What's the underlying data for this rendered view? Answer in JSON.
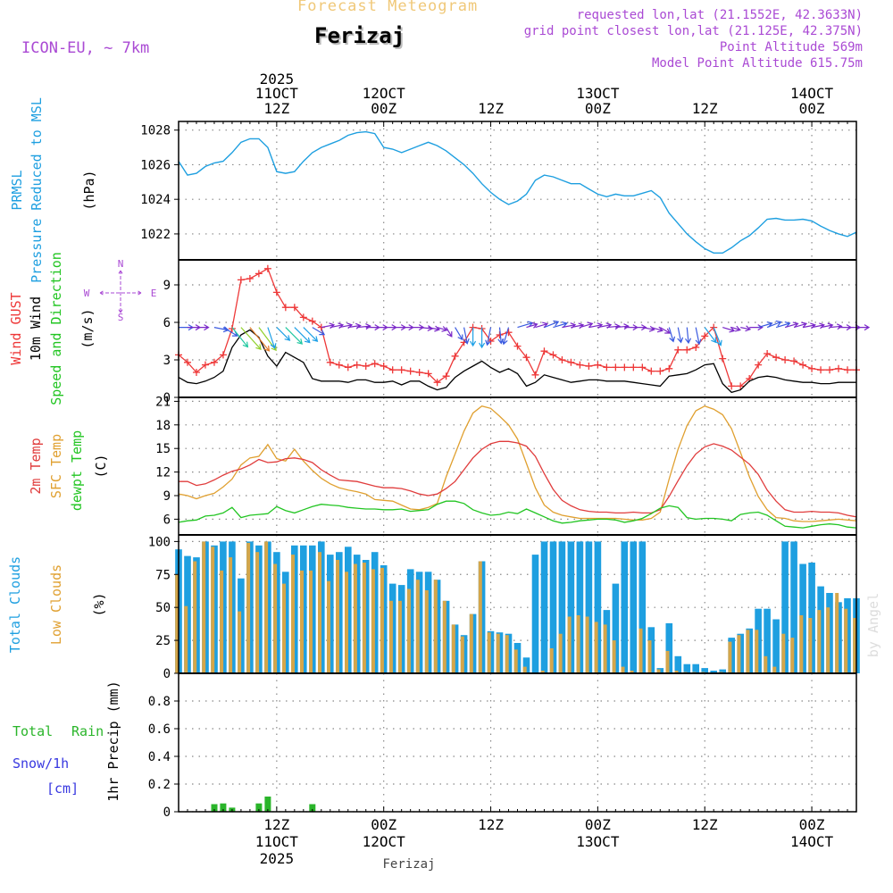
{
  "header": {
    "app_title": "Forecast Meteogram",
    "location": "Ferizaj",
    "model": "ICON-EU, ~ 7km",
    "requested": "requested lon,lat (21.1552E, 42.3633N)",
    "grid_point": "grid point closest lon,lat (21.125E, 42.375N)",
    "point_altitude": "Point Altitude 569m",
    "model_altitude": "Model Point Altitude 615.75m",
    "footer_location": "Ferizaj",
    "credit": "by Angel"
  },
  "colors": {
    "pressure": "#1e9fe0",
    "gust": "#ee3838",
    "wind": "#000000",
    "t2m": "#e03c3c",
    "sfc": "#e0a030",
    "dewpt": "#22c522",
    "total_cloud": "#1e9fe0",
    "low_cloud": "#d4a64a",
    "rain": "#2ab52a",
    "snow": "#3838e0",
    "purple": "#aa4ad4",
    "grid": "#888888"
  },
  "time_axis": {
    "top_labels": [
      {
        "t": 12,
        "l1": "2025",
        "l2": "11OCT",
        "l3": "12Z"
      },
      {
        "t": 24,
        "l1": "",
        "l2": "12OCT",
        "l3": "00Z"
      },
      {
        "t": 36,
        "l1": "",
        "l2": "",
        "l3": "12Z"
      },
      {
        "t": 48,
        "l1": "",
        "l2": "13OCT",
        "l3": "00Z"
      },
      {
        "t": 60,
        "l1": "",
        "l2": "",
        "l3": "12Z"
      },
      {
        "t": 72,
        "l1": "",
        "l2": "14OCT",
        "l3": "00Z"
      }
    ],
    "bottom_labels": [
      {
        "t": 12,
        "l1": "12Z",
        "l2": "11OCT",
        "l3": "2025"
      },
      {
        "t": 24,
        "l1": "00Z",
        "l2": "12OCT",
        "l3": ""
      },
      {
        "t": 36,
        "l1": "12Z",
        "l2": "",
        "l3": ""
      },
      {
        "t": 48,
        "l1": "00Z",
        "l2": "13OCT",
        "l3": ""
      },
      {
        "t": 60,
        "l1": "12Z",
        "l2": "",
        "l3": ""
      },
      {
        "t": 72,
        "l1": "00Z",
        "l2": "14OCT",
        "l3": ""
      }
    ]
  },
  "labels": {
    "prmsl": "PRMSL",
    "pressure_msl": "Pressure Reduced to MSL",
    "hpa": "(hPa)",
    "wind_gust": "Wind GUST",
    "wind10": "10m Wind",
    "speed_dir": "Speed and Direction",
    "ms": "(m/s)",
    "compass_w": "W",
    "compass_e": "E",
    "compass_n": "N",
    "compass_s": "S",
    "t2m": "2m Temp",
    "sfc": "SFC Temp",
    "dewpt": "dewpt Temp",
    "c": "(C)",
    "total_clouds": "Total Clouds",
    "low_clouds": "Low Clouds",
    "pct": "(%)",
    "total": "Total",
    "rain": "Rain",
    "snow": "Snow/1h",
    "cm": "[cm]",
    "precip": "1hr Precip (mm)"
  },
  "chart_data": {
    "type": "meteogram",
    "time_unit": "hours since 11OCT 00Z",
    "x_range": [
      1,
      77
    ],
    "pressure": {
      "unit": "hPa",
      "ylim": [
        1020.5,
        1028.5
      ],
      "ticks": [
        1022,
        1024,
        1026,
        1028
      ],
      "values": [
        1026.2,
        1025.4,
        1025.5,
        1025.9,
        1026.1,
        1026.2,
        1026.7,
        1027.3,
        1027.5,
        1027.5,
        1027.0,
        1025.6,
        1025.5,
        1025.6,
        1026.2,
        1026.7,
        1027.0,
        1027.2,
        1027.4,
        1027.7,
        1027.85,
        1027.9,
        1027.8,
        1027.0,
        1026.9,
        1026.7,
        1026.9,
        1027.1,
        1027.3,
        1027.1,
        1026.8,
        1026.4,
        1026.0,
        1025.5,
        1024.9,
        1024.4,
        1024.0,
        1023.7,
        1023.9,
        1024.3,
        1025.1,
        1025.4,
        1025.3,
        1025.1,
        1024.9,
        1024.9,
        1024.6,
        1024.3,
        1024.15,
        1024.3,
        1024.2,
        1024.2,
        1024.35,
        1024.5,
        1024.1,
        1023.2,
        1022.6,
        1022.0,
        1021.55,
        1021.15,
        1020.9,
        1020.9,
        1021.2,
        1021.6,
        1021.9,
        1022.35,
        1022.85,
        1022.9,
        1022.8,
        1022.8,
        1022.85,
        1022.75,
        1022.45,
        1022.2,
        1022.0,
        1021.85,
        1022.1
      ]
    },
    "wind": {
      "unit": "m/s",
      "ylim": [
        0,
        11
      ],
      "ticks": [
        0,
        3,
        6,
        9
      ],
      "gust": [
        3.4,
        2.8,
        2.0,
        2.6,
        2.8,
        3.4,
        5.5,
        9.4,
        9.5,
        9.9,
        10.3,
        8.4,
        7.2,
        7.2,
        6.4,
        6.1,
        5.6,
        2.8,
        2.6,
        2.4,
        2.6,
        2.5,
        2.7,
        2.5,
        2.2,
        2.2,
        2.1,
        2.0,
        1.9,
        1.2,
        1.7,
        3.3,
        4.4,
        5.6,
        5.5,
        4.5,
        5.0,
        5.2,
        4.1,
        3.2,
        1.8,
        3.7,
        3.4,
        3.0,
        2.8,
        2.6,
        2.5,
        2.6,
        2.4,
        2.4,
        2.4,
        2.4,
        2.4,
        2.1,
        2.1,
        2.3,
        3.8,
        3.8,
        4.0,
        4.9,
        5.6,
        3.1,
        0.9,
        0.9,
        1.5,
        2.6,
        3.5,
        3.2,
        3.0,
        2.9,
        2.6,
        2.3,
        2.2,
        2.2,
        2.3,
        2.2,
        2.2
      ],
      "speed": [
        1.6,
        1.2,
        1.1,
        1.3,
        1.6,
        2.1,
        4.0,
        5.0,
        5.4,
        4.8,
        3.3,
        2.5,
        3.6,
        3.2,
        2.8,
        1.5,
        1.3,
        1.3,
        1.3,
        1.2,
        1.4,
        1.4,
        1.2,
        1.2,
        1.3,
        1.0,
        1.3,
        1.3,
        0.9,
        0.6,
        0.8,
        1.6,
        2.1,
        2.5,
        2.9,
        2.4,
        2.0,
        2.3,
        1.9,
        0.9,
        1.2,
        1.8,
        1.6,
        1.4,
        1.2,
        1.3,
        1.4,
        1.4,
        1.3,
        1.3,
        1.3,
        1.2,
        1.1,
        1.0,
        0.9,
        1.7,
        1.8,
        1.9,
        2.2,
        2.6,
        2.7,
        1.1,
        0.4,
        0.6,
        1.3,
        1.6,
        1.7,
        1.6,
        1.4,
        1.3,
        1.2,
        1.2,
        1.1,
        1.1,
        1.2,
        1.2,
        1.2
      ],
      "direction_arrows": [
        {
          "t": 1,
          "dx": 1,
          "dy": 0
        },
        {
          "t": 2,
          "dx": 1,
          "dy": 0
        },
        {
          "t": 3,
          "dx": 1,
          "dy": 0
        },
        {
          "t": 5,
          "dx": 1,
          "dy": 0.2
        },
        {
          "t": 6,
          "dx": 1,
          "dy": 0.6
        },
        {
          "t": 7,
          "dx": 0.8,
          "dy": 1
        },
        {
          "t": 8,
          "dx": 0.9,
          "dy": 1
        },
        {
          "t": 9,
          "dx": 0.9,
          "dy": 1.1
        },
        {
          "t": 10,
          "dx": 0.9,
          "dy": 1.2
        },
        {
          "t": 11,
          "dx": 0.4,
          "dy": 1.2
        },
        {
          "t": 12,
          "dx": 1,
          "dy": 1
        },
        {
          "t": 13,
          "dx": 1,
          "dy": 1
        },
        {
          "t": 14,
          "dx": 1,
          "dy": 1
        },
        {
          "t": 15,
          "dx": 1,
          "dy": 1
        },
        {
          "t": 16,
          "dx": 1,
          "dy": 0.6
        },
        {
          "t": 17,
          "dx": 1,
          "dy": -0.2
        },
        {
          "t": 18,
          "dx": 1,
          "dy": -0.2
        },
        {
          "t": 19,
          "dx": 1,
          "dy": -0.2
        },
        {
          "t": 20,
          "dx": 1,
          "dy": -0.15
        },
        {
          "t": 21,
          "dx": 1,
          "dy": -0.1
        },
        {
          "t": 22,
          "dx": 1,
          "dy": 0
        },
        {
          "t": 23,
          "dx": 1,
          "dy": 0
        },
        {
          "t": 24,
          "dx": 1,
          "dy": 0
        },
        {
          "t": 25,
          "dx": 1,
          "dy": 0
        },
        {
          "t": 26,
          "dx": 1,
          "dy": 0
        },
        {
          "t": 27,
          "dx": 1,
          "dy": 0
        },
        {
          "t": 28,
          "dx": 1,
          "dy": 0.1
        },
        {
          "t": 29,
          "dx": 1,
          "dy": 0.2
        },
        {
          "t": 30,
          "dx": 1,
          "dy": 0.3
        },
        {
          "t": 31,
          "dx": 0.6,
          "dy": 1
        },
        {
          "t": 32,
          "dx": 0.6,
          "dy": 1
        },
        {
          "t": 33,
          "dx": 0.2,
          "dy": 1
        },
        {
          "t": 34,
          "dx": 0,
          "dy": 1
        },
        {
          "t": 35,
          "dx": 0,
          "dy": 1
        },
        {
          "t": 36,
          "dx": -0.2,
          "dy": 1
        },
        {
          "t": 37,
          "dx": 0.1,
          "dy": 1
        },
        {
          "t": 38,
          "dx": -0.3,
          "dy": 1
        },
        {
          "t": 39,
          "dx": 1,
          "dy": -0.3
        },
        {
          "t": 40,
          "dx": 1,
          "dy": -0.3
        },
        {
          "t": 41,
          "dx": 1,
          "dy": -0.3
        },
        {
          "t": 42,
          "dx": 1,
          "dy": -0.4
        },
        {
          "t": 43,
          "dx": 1,
          "dy": -0.3
        },
        {
          "t": 44,
          "dx": 1,
          "dy": -0.2
        },
        {
          "t": 45,
          "dx": 1,
          "dy": -0.2
        },
        {
          "t": 46,
          "dx": 1,
          "dy": -0.3
        },
        {
          "t": 47,
          "dx": 1,
          "dy": -0.2
        },
        {
          "t": 48,
          "dx": 1,
          "dy": -0.2
        },
        {
          "t": 49,
          "dx": 1,
          "dy": -0.1
        },
        {
          "t": 50,
          "dx": 1,
          "dy": -0.1
        },
        {
          "t": 51,
          "dx": 1,
          "dy": 0
        },
        {
          "t": 52,
          "dx": 1,
          "dy": 0
        },
        {
          "t": 53,
          "dx": 1,
          "dy": 0.2
        },
        {
          "t": 54,
          "dx": 1,
          "dy": 0.3
        },
        {
          "t": 55,
          "dx": 1,
          "dy": 0.6
        },
        {
          "t": 56,
          "dx": 0.3,
          "dy": 1
        },
        {
          "t": 57,
          "dx": 0.2,
          "dy": 1
        },
        {
          "t": 58,
          "dx": 0.1,
          "dy": 1
        },
        {
          "t": 59,
          "dx": 0.2,
          "dy": 1
        },
        {
          "t": 60,
          "dx": 0.6,
          "dy": 0.8
        },
        {
          "t": 61,
          "dx": 0.4,
          "dy": 1
        },
        {
          "t": 62,
          "dx": 1,
          "dy": 0.3
        },
        {
          "t": 63,
          "dx": 1,
          "dy": 0.3
        },
        {
          "t": 64,
          "dx": 1,
          "dy": 0.2
        },
        {
          "t": 65,
          "dx": 1,
          "dy": 0
        },
        {
          "t": 66,
          "dx": 1,
          "dy": -0.3
        },
        {
          "t": 67,
          "dx": 1,
          "dy": -0.4
        },
        {
          "t": 68,
          "dx": 1,
          "dy": -0.3
        },
        {
          "t": 69,
          "dx": 1,
          "dy": -0.3
        },
        {
          "t": 70,
          "dx": 1,
          "dy": -0.3
        },
        {
          "t": 71,
          "dx": 1,
          "dy": -0.2
        },
        {
          "t": 72,
          "dx": 1,
          "dy": -0.2
        },
        {
          "t": 73,
          "dx": 1,
          "dy": -0.2
        },
        {
          "t": 74,
          "dx": 1,
          "dy": -0.1
        },
        {
          "t": 75,
          "dx": 1,
          "dy": 0
        },
        {
          "t": 76,
          "dx": 1,
          "dy": 0
        },
        {
          "t": 77,
          "dx": 1,
          "dy": 0
        }
      ]
    },
    "temperature": {
      "unit": "C",
      "ylim": [
        4,
        21.5
      ],
      "ticks": [
        6,
        9,
        12,
        15,
        18,
        21
      ],
      "t2m": [
        10.8,
        10.8,
        10.3,
        10.5,
        11.0,
        11.6,
        12.1,
        12.4,
        12.9,
        13.6,
        13.2,
        13.3,
        13.7,
        13.8,
        13.6,
        13.2,
        12.3,
        11.6,
        11.0,
        10.9,
        10.8,
        10.5,
        10.2,
        10.0,
        10.0,
        9.9,
        9.6,
        9.2,
        9.0,
        9.2,
        9.9,
        10.8,
        12.3,
        13.8,
        14.9,
        15.6,
        15.9,
        15.9,
        15.7,
        15.3,
        14.0,
        11.8,
        9.8,
        8.4,
        7.7,
        7.2,
        7.0,
        6.9,
        6.9,
        6.8,
        6.8,
        6.9,
        6.8,
        6.8,
        7.2,
        8.9,
        10.9,
        12.8,
        14.3,
        15.2,
        15.6,
        15.3,
        14.8,
        13.9,
        13.0,
        11.7,
        9.7,
        8.3,
        7.2,
        6.9,
        6.9,
        7.0,
        6.9,
        6.9,
        6.8,
        6.5,
        6.3
      ],
      "sfc": [
        9.2,
        9.0,
        8.6,
        9.0,
        9.3,
        10.1,
        11.1,
        12.9,
        13.8,
        14.0,
        15.5,
        13.7,
        13.4,
        14.9,
        13.4,
        12.2,
        11.2,
        10.5,
        10.0,
        9.7,
        9.5,
        9.2,
        8.5,
        8.4,
        8.3,
        7.8,
        7.3,
        7.2,
        7.5,
        8.0,
        11.4,
        14.3,
        17.2,
        19.5,
        20.4,
        20.1,
        19.1,
        18.0,
        16.2,
        13.1,
        10.0,
        7.8,
        6.9,
        6.5,
        6.3,
        6.1,
        6.1,
        6.1,
        6.1,
        6.1,
        6.0,
        5.9,
        5.9,
        6.1,
        6.9,
        11.1,
        14.9,
        17.9,
        19.8,
        20.4,
        20.0,
        19.3,
        17.5,
        14.5,
        11.4,
        8.9,
        7.2,
        6.2,
        6.1,
        5.8,
        5.7,
        5.7,
        5.8,
        5.9,
        6.0,
        5.9,
        5.8
      ],
      "dewpt": [
        5.6,
        5.8,
        5.9,
        6.4,
        6.5,
        6.8,
        7.5,
        6.2,
        6.5,
        6.6,
        6.7,
        7.6,
        7.1,
        6.8,
        7.2,
        7.6,
        7.9,
        7.8,
        7.7,
        7.5,
        7.4,
        7.3,
        7.3,
        7.2,
        7.2,
        7.3,
        7.0,
        7.1,
        7.2,
        7.9,
        8.3,
        8.3,
        8.0,
        7.2,
        6.8,
        6.5,
        6.6,
        6.9,
        6.7,
        7.3,
        6.8,
        6.3,
        5.8,
        5.5,
        5.6,
        5.8,
        5.9,
        6.0,
        6.0,
        5.9,
        5.6,
        5.8,
        6.1,
        6.7,
        7.4,
        7.7,
        7.5,
        6.2,
        6.0,
        6.1,
        6.1,
        6.0,
        5.8,
        6.6,
        6.8,
        6.9,
        6.5,
        5.8,
        5.1,
        5.0,
        4.9,
        5.1,
        5.3,
        5.4,
        5.3,
        5.0,
        4.9
      ]
    },
    "clouds": {
      "unit": "%",
      "ylim": [
        0,
        105
      ],
      "ticks": [
        0,
        25,
        50,
        75,
        100
      ],
      "total": [
        94,
        89,
        88,
        100,
        97,
        100,
        100,
        72,
        100,
        97,
        100,
        92,
        77,
        97,
        97,
        97,
        100,
        90,
        92,
        96,
        90,
        86,
        92,
        82,
        68,
        67,
        79,
        77,
        77,
        71,
        55,
        37,
        29,
        45,
        85,
        32,
        31,
        30,
        23,
        12,
        90,
        100,
        100,
        100,
        100,
        100,
        100,
        100,
        48,
        68,
        100,
        100,
        100,
        35,
        4,
        38,
        13,
        7,
        7,
        4,
        2,
        3,
        27,
        30,
        34,
        49,
        49,
        41,
        100,
        100,
        83,
        84,
        66,
        61,
        54,
        57,
        57
      ],
      "low": [
        75,
        51,
        85,
        100,
        96,
        78,
        88,
        47,
        99,
        92,
        100,
        83,
        68,
        90,
        78,
        78,
        92,
        70,
        86,
        77,
        83,
        84,
        79,
        80,
        55,
        55,
        64,
        71,
        63,
        71,
        55,
        37,
        28,
        45,
        85,
        31,
        30,
        29,
        18,
        5,
        0,
        2,
        19,
        30,
        43,
        44,
        43,
        39,
        37,
        25,
        5,
        2,
        34,
        25,
        3,
        17,
        2,
        1,
        1,
        1,
        0,
        1,
        24,
        29,
        33,
        33,
        13,
        5,
        30,
        27,
        44,
        42,
        48,
        50,
        61,
        49,
        42
      ]
    },
    "precip": {
      "unit": "mm",
      "ylim": [
        0,
        1.0
      ],
      "ticks": [
        0,
        0.2,
        0.4,
        0.6,
        0.8
      ],
      "rain_bars": [
        {
          "t": 5,
          "v": 0.055
        },
        {
          "t": 6,
          "v": 0.06
        },
        {
          "t": 7,
          "v": 0.03
        },
        {
          "t": 10,
          "v": 0.06
        },
        {
          "t": 11,
          "v": 0.11
        },
        {
          "t": 16,
          "v": 0.055
        }
      ],
      "snow_bars": []
    }
  }
}
